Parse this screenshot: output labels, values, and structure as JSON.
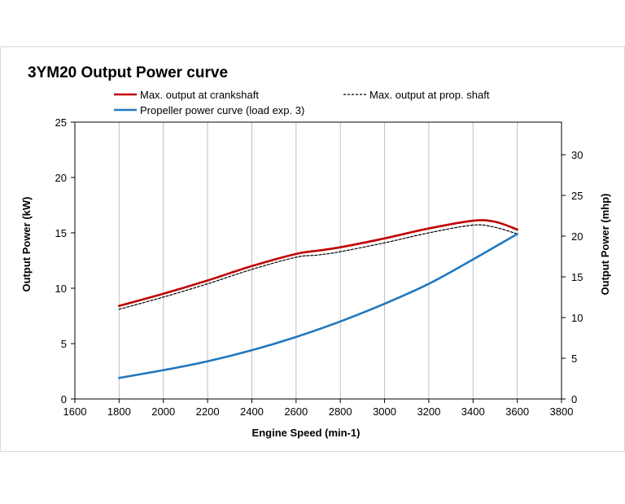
{
  "chart_data": {
    "type": "line",
    "title": "3YM20 Output Power curve",
    "xlabel": "Engine Speed (min-1)",
    "ylabel": "Output Power (kW)",
    "y2label": "Output Power (mhp)",
    "xlim": [
      1600,
      3800
    ],
    "ylim": [
      0,
      25
    ],
    "y2lim": [
      0,
      34
    ],
    "x_ticks": [
      1600,
      1800,
      2000,
      2200,
      2400,
      2600,
      2800,
      3000,
      3200,
      3400,
      3600,
      3800
    ],
    "y_ticks": [
      0,
      5,
      10,
      15,
      20,
      25
    ],
    "y2_ticks": [
      0,
      5,
      10,
      15,
      20,
      25,
      30
    ],
    "grid": "vertical",
    "legend_position": "top",
    "series": [
      {
        "name": "Max. output at crankshaft",
        "color": "#c00000",
        "style": "solid",
        "x": [
          1800,
          2000,
          2200,
          2400,
          2600,
          2700,
          2800,
          3000,
          3200,
          3400,
          3500,
          3600
        ],
        "y": [
          8.4,
          9.5,
          10.7,
          12.0,
          13.1,
          13.4,
          13.7,
          14.5,
          15.4,
          16.1,
          16.0,
          15.3
        ]
      },
      {
        "name": "Max. output at prop. shaft",
        "color": "#000000",
        "style": "dashed",
        "x": [
          1800,
          2000,
          2200,
          2400,
          2600,
          2700,
          2800,
          3000,
          3200,
          3400,
          3500,
          3600
        ],
        "y": [
          8.1,
          9.2,
          10.4,
          11.7,
          12.8,
          13.0,
          13.3,
          14.1,
          15.0,
          15.7,
          15.5,
          14.9
        ]
      },
      {
        "name": "Propeller power curve (load exp. 3)",
        "color": "#1f78c1",
        "style": "solid",
        "x": [
          1800,
          2000,
          2200,
          2400,
          2600,
          2800,
          3000,
          3200,
          3400,
          3600
        ],
        "y": [
          1.9,
          2.6,
          3.4,
          4.4,
          5.6,
          7.0,
          8.6,
          10.4,
          12.6,
          14.9
        ]
      }
    ]
  }
}
